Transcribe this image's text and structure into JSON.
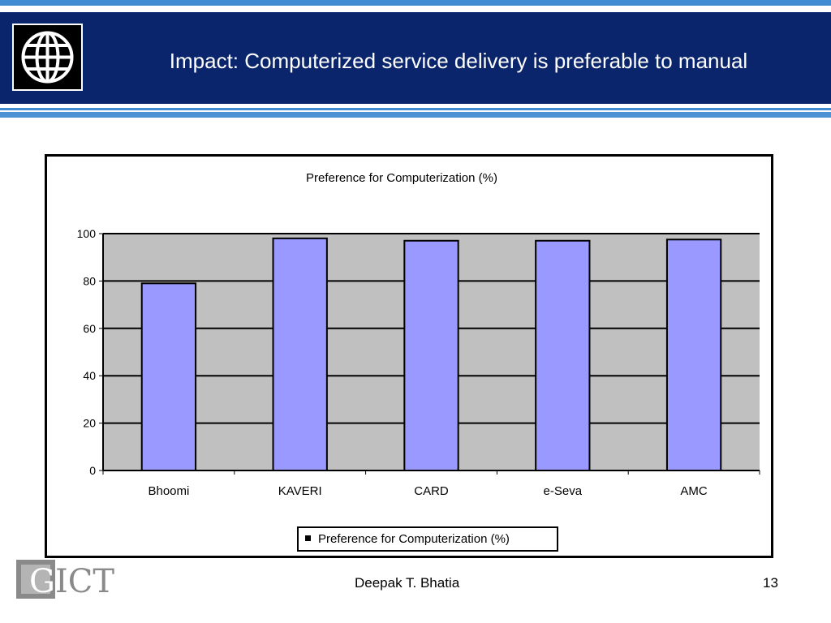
{
  "slide": {
    "title": "Impact: Computerized service delivery is preferable to manual",
    "footer": "Deepak T. Bhatia",
    "page_number": "13",
    "footer_logo_text": "GICT"
  },
  "colors": {
    "header_background": "#0a256b",
    "stripe": "#3f8ad1",
    "bar_fill": "#9999ff",
    "plot_background": "#c0c0c0"
  },
  "icons": {
    "header_logo": "globe-icon",
    "legend_marker": "square-marker-icon"
  },
  "chart_data": {
    "type": "bar",
    "title": "Preference for Computerization (%)",
    "categories": [
      "Bhoomi",
      "KAVERI",
      "CARD",
      "e-Seva",
      "AMC"
    ],
    "series": [
      {
        "name": "Preference for Computerization (%)",
        "values": [
          79,
          98,
          97,
          97,
          97.5
        ]
      }
    ],
    "ylim": [
      0,
      100
    ],
    "yticks": [
      "0",
      "20",
      "40",
      "60",
      "80",
      "100"
    ],
    "grid": true,
    "legend": "bottom"
  }
}
